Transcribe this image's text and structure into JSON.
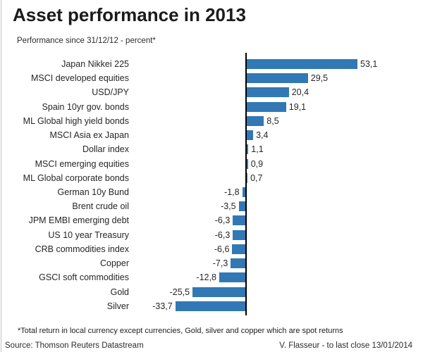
{
  "header": {
    "title": "Asset performance in 2013",
    "subtitle": "Performance since 31/12/12 - percent*"
  },
  "footer": {
    "footnote": "*Total return in local currency except currencies, Gold, silver and copper which are spot returns",
    "source": "Source: Thomson Reuters Datastream",
    "credit": "V. Flasseur - to last close 13/01/2014"
  },
  "colors": {
    "bar": "#3178b5",
    "axis": "#000000",
    "text": "#262626"
  },
  "chart_data": {
    "type": "bar",
    "orientation": "horizontal",
    "title": "Asset performance in 2013",
    "subtitle": "Performance since 31/12/12 - percent*",
    "xlabel": "",
    "ylabel": "",
    "xlim": [
      -40,
      60
    ],
    "grid": false,
    "legend": "none",
    "value_label_position": "bar-end",
    "decimal_separator": ",",
    "categories": [
      "Japan Nikkei 225",
      "MSCI developed equities",
      "USD/JPY",
      "Spain 10yr gov. bonds",
      "ML Global high yield bonds",
      "MSCI Asia ex Japan",
      "Dollar index",
      "MSCI emerging equities",
      "ML Global corporate bonds",
      "German 10y Bund",
      "Brent crude oil",
      "JPM EMBI emerging debt",
      "US 10 year Treasury",
      "CRB commodities index",
      "Copper",
      "GSCI soft commodities",
      "Gold",
      "Silver"
    ],
    "values": [
      53.1,
      29.5,
      20.4,
      19.1,
      8.5,
      3.4,
      1.1,
      0.9,
      0.7,
      -1.8,
      -3.5,
      -6.3,
      -6.3,
      -6.6,
      -7.3,
      -12.8,
      -25.5,
      -33.7
    ],
    "value_labels": [
      "53,1",
      "29,5",
      "20,4",
      "19,1",
      "8,5",
      "3,4",
      "1,1",
      "0,9",
      "0,7",
      "-1,8",
      "-3,5",
      "-6,3",
      "-6,3",
      "-6,6",
      "-7,3",
      "-12,8",
      "-25,5",
      "-33,7"
    ]
  }
}
